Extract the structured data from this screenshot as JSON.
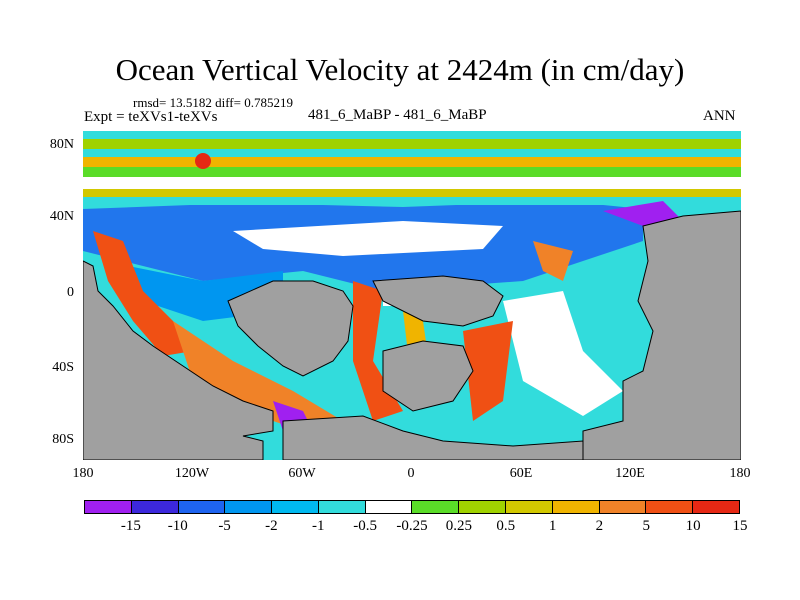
{
  "title": "Ocean Vertical Velocity at 2424m (in cm/day)",
  "stats": "rmsd= 13.5182 diff= 0.785219",
  "expt": "Expt = teXVs1-teXVs",
  "cases": "481_6_MaBP - 481_6_MaBP",
  "season": "ANN",
  "colors": {
    "land": "#a0a0a0",
    "palette": [
      "#a020f0",
      "#3c28dc",
      "#1e64f0",
      "#0096f0",
      "#00b9f0",
      "#32dcdc",
      "#ffffff",
      "#5adc28",
      "#a0d200",
      "#d2c800",
      "#f0b400",
      "#f08228",
      "#f05014",
      "#e62814"
    ]
  },
  "map": {
    "y_axis": [
      "80N",
      "40N",
      "0",
      "40S",
      "80S"
    ],
    "x_axis": [
      "180",
      "120W",
      "60W",
      "0",
      "60E",
      "120E",
      "180"
    ]
  },
  "colorbar": {
    "labels": [
      "-15",
      "-10",
      "-5",
      "-2",
      "-1",
      "-0.5",
      "-0.25",
      "0.25",
      "0.5",
      "1",
      "2",
      "5",
      "10",
      "15"
    ]
  }
}
